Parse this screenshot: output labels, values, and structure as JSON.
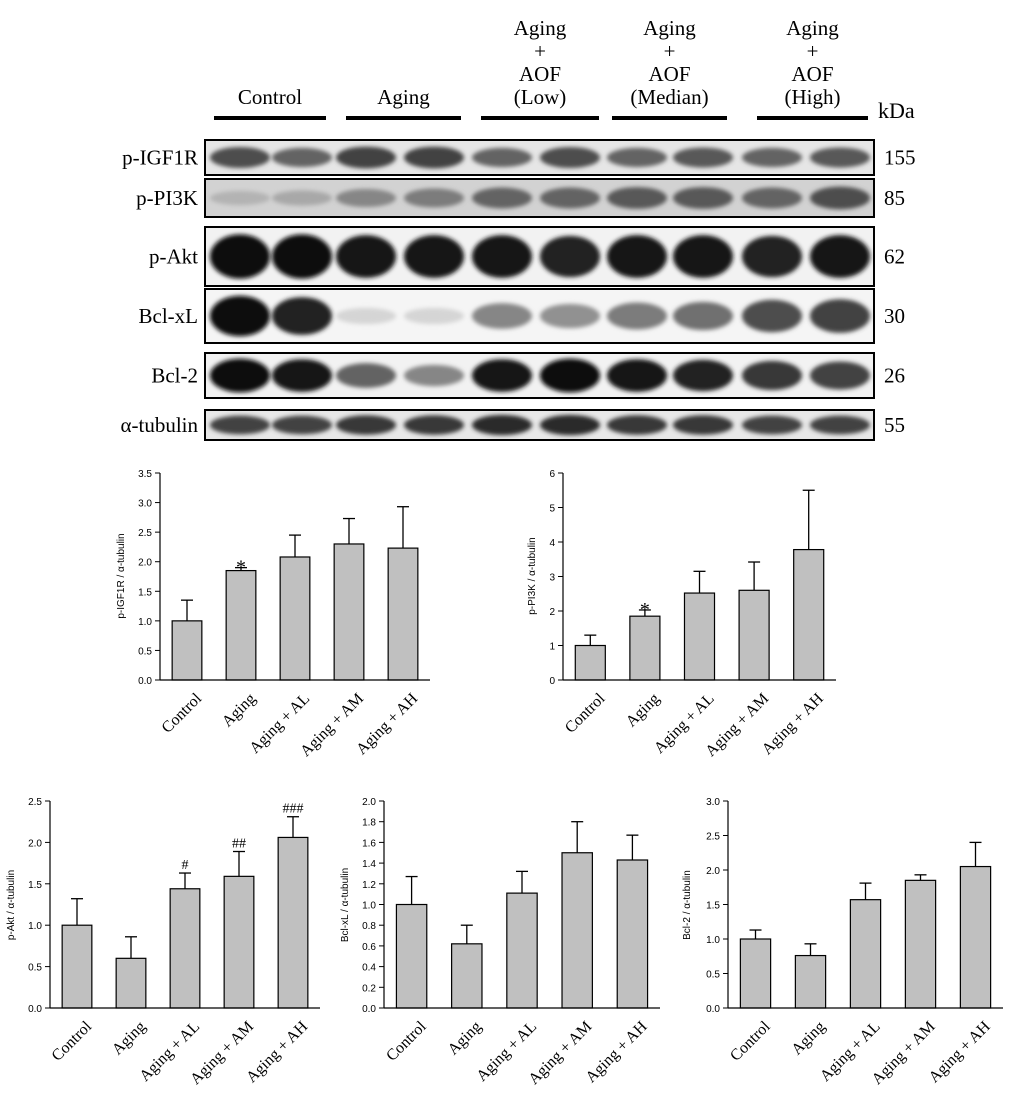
{
  "blot": {
    "kda_label": "kDa",
    "groups": [
      {
        "lines": [
          "Control"
        ]
      },
      {
        "lines": [
          "Aging"
        ]
      },
      {
        "lines": [
          "Aging",
          "+",
          "AOF",
          "(Low)"
        ]
      },
      {
        "lines": [
          "Aging",
          "+",
          "AOF",
          "(Median)"
        ]
      },
      {
        "lines": [
          "Aging",
          "+",
          "AOF",
          "(High)"
        ]
      }
    ],
    "rows": [
      {
        "label": "p-IGF1R",
        "kda": "155",
        "intensity": [
          0.7,
          0.6,
          0.75,
          0.75,
          0.6,
          0.7,
          0.6,
          0.65,
          0.6,
          0.65
        ],
        "bg": "#e6e6e6"
      },
      {
        "label": "p-PI3K",
        "kda": "85",
        "intensity": [
          0.25,
          0.3,
          0.45,
          0.5,
          0.6,
          0.6,
          0.65,
          0.65,
          0.6,
          0.7
        ],
        "bg": "#d2d2d2"
      },
      {
        "label": "p-Akt",
        "kda": "62",
        "intensity": [
          1.0,
          1.0,
          0.95,
          0.95,
          0.95,
          0.9,
          0.95,
          0.95,
          0.9,
          0.95
        ],
        "bg": "#f2f2f2"
      },
      {
        "label": "Bcl-xL",
        "kda": "30",
        "intensity": [
          1.0,
          0.9,
          0.1,
          0.1,
          0.45,
          0.4,
          0.5,
          0.55,
          0.7,
          0.75
        ],
        "bg": "#f5f5f5"
      },
      {
        "label": "Bcl-2",
        "kda": "26",
        "intensity": [
          1.0,
          0.95,
          0.6,
          0.45,
          0.95,
          1.0,
          0.95,
          0.9,
          0.8,
          0.75
        ],
        "bg": "#f2f2f2"
      },
      {
        "label": "α-tubulin",
        "kda": "55",
        "intensity": [
          0.75,
          0.75,
          0.8,
          0.8,
          0.85,
          0.85,
          0.8,
          0.8,
          0.75,
          0.75
        ],
        "bg": "#e8e8e8"
      }
    ]
  },
  "chart_data": [
    {
      "type": "bar",
      "categories": [
        "Control",
        "Aging",
        "Aging + AL",
        "Aging + AM",
        "Aging + AH"
      ],
      "values": [
        1.0,
        1.85,
        2.08,
        2.3,
        2.23
      ],
      "errors": [
        0.35,
        0.05,
        0.37,
        0.43,
        0.7
      ],
      "annotations": [
        "",
        "*",
        "",
        "",
        ""
      ],
      "ylabel": "p-IGF1R / α-tubulin",
      "ylim": [
        0,
        3.5
      ],
      "ticks": [
        "0.0",
        "0.5",
        "1.0",
        "1.5",
        "2.0",
        "2.5",
        "3.0",
        "3.5"
      ]
    },
    {
      "type": "bar",
      "categories": [
        "Control",
        "Aging",
        "Aging + AL",
        "Aging + AM",
        "Aging + AH"
      ],
      "values": [
        1.0,
        1.85,
        2.52,
        2.6,
        3.78
      ],
      "errors": [
        0.3,
        0.18,
        0.63,
        0.82,
        1.72
      ],
      "annotations": [
        "",
        "*",
        "",
        "",
        ""
      ],
      "ylabel": "p-PI3K / α-tubulin",
      "ylim": [
        0,
        6
      ],
      "ticks": [
        "0",
        "1",
        "2",
        "3",
        "4",
        "5",
        "6"
      ]
    },
    {
      "type": "bar",
      "categories": [
        "Control",
        "Aging",
        "Aging + AL",
        "Aging + AM",
        "Aging + AH"
      ],
      "values": [
        1.0,
        0.6,
        1.44,
        1.59,
        2.06
      ],
      "errors": [
        0.32,
        0.26,
        0.19,
        0.3,
        0.25
      ],
      "annotations": [
        "",
        "",
        "#",
        "##",
        "###"
      ],
      "ylabel": "p-Akt / α-tubulin",
      "ylim": [
        0,
        2.5
      ],
      "ticks": [
        "0.0",
        "0.5",
        "1.0",
        "1.5",
        "2.0",
        "2.5"
      ]
    },
    {
      "type": "bar",
      "categories": [
        "Control",
        "Aging",
        "Aging + AL",
        "Aging + AM",
        "Aging + AH"
      ],
      "values": [
        1.0,
        0.62,
        1.11,
        1.5,
        1.43
      ],
      "errors": [
        0.27,
        0.18,
        0.21,
        0.3,
        0.24
      ],
      "annotations": [
        "",
        "",
        "",
        "",
        ""
      ],
      "ylabel": "Bcl-xL / α-tubulin",
      "ylim": [
        0,
        2.0
      ],
      "ticks": [
        "0.0",
        "0.2",
        "0.4",
        "0.6",
        "0.8",
        "1.0",
        "1.2",
        "1.4",
        "1.6",
        "1.8",
        "2.0"
      ]
    },
    {
      "type": "bar",
      "categories": [
        "Control",
        "Aging",
        "Aging + AL",
        "Aging + AM",
        "Aging + AH"
      ],
      "values": [
        1.0,
        0.76,
        1.57,
        1.85,
        2.05
      ],
      "errors": [
        0.13,
        0.17,
        0.24,
        0.08,
        0.35
      ],
      "annotations": [
        "",
        "",
        "",
        "",
        ""
      ],
      "ylabel": "Bcl-2 / α-tubulin",
      "ylim": [
        0,
        3.0
      ],
      "ticks": [
        "0.0",
        "0.5",
        "1.0",
        "1.5",
        "2.0",
        "2.5",
        "3.0"
      ]
    }
  ]
}
